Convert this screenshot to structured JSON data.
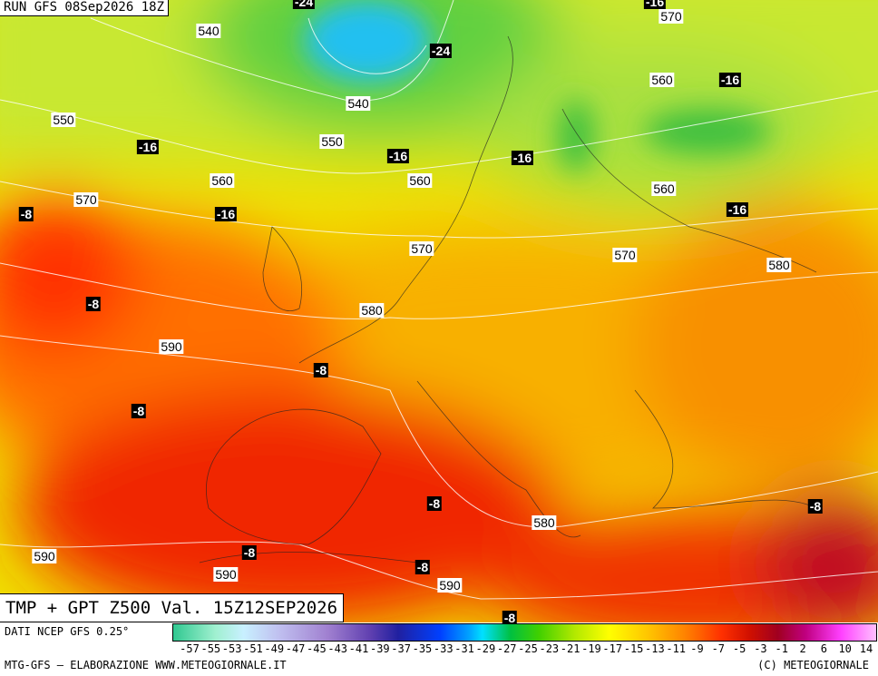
{
  "header": {
    "run": "RUN GFS 08Sep2026 18Z"
  },
  "map": {
    "temperature_labels": [
      "-24",
      "-24",
      "-16",
      "-16",
      "-16",
      "-16",
      "-16",
      "-16",
      "-16",
      "-8",
      "-8",
      "-8",
      "-8",
      "-8",
      "-8",
      "-8",
      "-8",
      "-8"
    ],
    "height_labels": [
      "540",
      "570",
      "560",
      "540",
      "550",
      "550",
      "560",
      "560",
      "560",
      "570",
      "570",
      "570",
      "580",
      "580",
      "590",
      "580",
      "590",
      "590",
      "590"
    ]
  },
  "footer": {
    "title": "TMP + GPT Z500 Val. 15Z12SEP2026",
    "source": "DATI NCEP GFS 0.25°",
    "scale_labels": [
      "-57",
      "-55",
      "-53",
      "-51",
      "-49",
      "-47",
      "-45",
      "-43",
      "-41",
      "-39",
      "-37",
      "-35",
      "-33",
      "-31",
      "-29",
      "-27",
      "-25",
      "-23",
      "-21",
      "-19",
      "-17",
      "-15",
      "-13",
      "-11",
      "-9",
      "-7",
      "-5",
      "-3",
      "-1",
      "2",
      "6",
      "10",
      "14"
    ],
    "credit": "MTG-GFS — ELABORAZIONE WWW.METEOGIORNALE.IT",
    "copyright": "(C) METEOGIORNALE"
  }
}
